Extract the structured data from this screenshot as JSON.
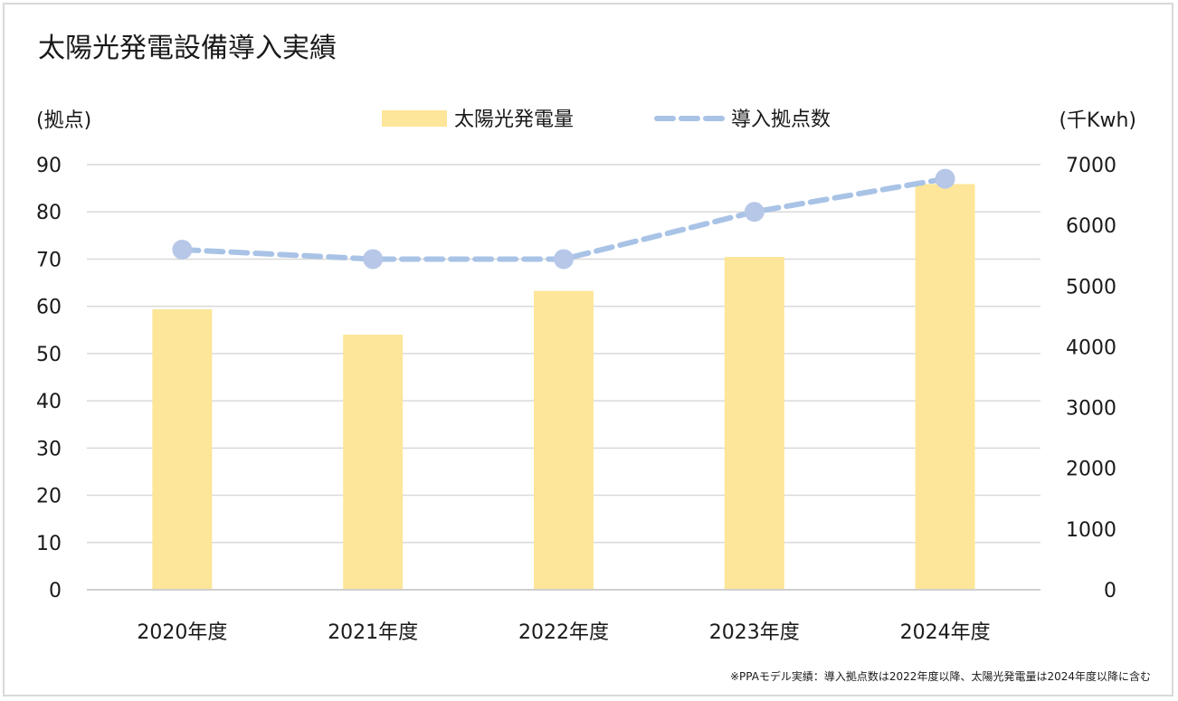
{
  "chart_data": {
    "type": "bar",
    "title": "太陽光発電設備導入実績",
    "categories": [
      "2020年度",
      "2021年度",
      "2022年度",
      "2023年度",
      "2024年度"
    ],
    "series": [
      {
        "name": "太陽光発電量",
        "kind": "bar",
        "axis": "right",
        "values": [
          4620,
          4200,
          4920,
          5480,
          6680
        ],
        "color": "#fde699"
      },
      {
        "name": "導入拠点数",
        "kind": "line",
        "style": "dashed",
        "axis": "left",
        "values": [
          72,
          70,
          70,
          80,
          87
        ],
        "color": "#a9c3e6"
      }
    ],
    "left_axis": {
      "label": "(拠点)",
      "ylim": [
        0,
        90
      ],
      "ticks": [
        "0",
        "10",
        "20",
        "30",
        "40",
        "50",
        "60",
        "70",
        "80",
        "90"
      ]
    },
    "right_axis": {
      "label": "(千Kwh)",
      "ylim": [
        0,
        7000
      ],
      "ticks": [
        "0",
        "1000",
        "2000",
        "3000",
        "4000",
        "5000",
        "6000",
        "7000"
      ]
    },
    "grid": true,
    "legend_position": "top-center",
    "note": "※PPAモデル実績：導入拠点数は2022年度以降、太陽光発電量は2024年度以降に含む"
  }
}
